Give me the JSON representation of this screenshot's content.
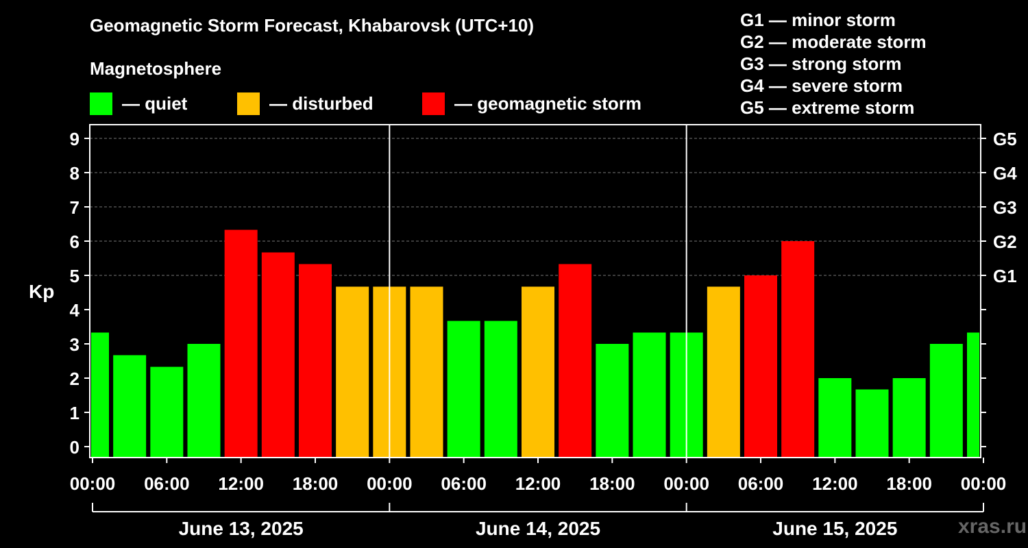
{
  "header": {
    "title": "Geomagnetic Storm Forecast, Khabarovsk (UTC+10)",
    "subtitle": "Magnetosphere"
  },
  "legend": [
    {
      "label": "— quiet",
      "color": "#00ff00"
    },
    {
      "label": "— disturbed",
      "color": "#ffc000"
    },
    {
      "label": "— geomagnetic storm",
      "color": "#ff0000"
    }
  ],
  "storm_levels": [
    "G1 — minor storm",
    "G2 — moderate storm",
    "G3 — strong storm",
    "G4 — severe storm",
    "G5 — extreme storm"
  ],
  "watermark": "xras.ru",
  "chart_data": {
    "type": "bar",
    "ylabel": "Kp",
    "ylim": [
      0,
      9
    ],
    "yticks": [
      0,
      1,
      2,
      3,
      4,
      5,
      6,
      7,
      8,
      9
    ],
    "right_axis_labels": [
      {
        "value": 5,
        "label": "G1"
      },
      {
        "value": 6,
        "label": "G2"
      },
      {
        "value": 7,
        "label": "G3"
      },
      {
        "value": 8,
        "label": "G4"
      },
      {
        "value": 9,
        "label": "G5"
      }
    ],
    "x_tick_labels": [
      "00:00",
      "06:00",
      "12:00",
      "18:00",
      "00:00",
      "06:00",
      "12:00",
      "18:00",
      "00:00",
      "06:00",
      "12:00",
      "18:00",
      "00:00"
    ],
    "days": [
      "June 13, 2025",
      "June 14, 2025",
      "June 15, 2025"
    ],
    "grid": "dashed horizontal",
    "colors": {
      "quiet": "#00ff00",
      "disturbed": "#ffc000",
      "storm": "#ff0000"
    },
    "bars": [
      {
        "time": "June 13, 2025 00:00",
        "kp": 3.33,
        "status": "quiet"
      },
      {
        "time": "June 13, 2025 03:00",
        "kp": 2.67,
        "status": "quiet"
      },
      {
        "time": "June 13, 2025 06:00",
        "kp": 2.33,
        "status": "quiet"
      },
      {
        "time": "June 13, 2025 09:00",
        "kp": 3.0,
        "status": "quiet"
      },
      {
        "time": "June 13, 2025 12:00",
        "kp": 6.33,
        "status": "storm"
      },
      {
        "time": "June 13, 2025 15:00",
        "kp": 5.67,
        "status": "storm"
      },
      {
        "time": "June 13, 2025 18:00",
        "kp": 5.33,
        "status": "storm"
      },
      {
        "time": "June 13, 2025 21:00",
        "kp": 4.67,
        "status": "disturbed"
      },
      {
        "time": "June 14, 2025 00:00",
        "kp": 4.67,
        "status": "disturbed"
      },
      {
        "time": "June 14, 2025 03:00",
        "kp": 4.67,
        "status": "disturbed"
      },
      {
        "time": "June 14, 2025 06:00",
        "kp": 3.67,
        "status": "quiet"
      },
      {
        "time": "June 14, 2025 09:00",
        "kp": 3.67,
        "status": "quiet"
      },
      {
        "time": "June 14, 2025 12:00",
        "kp": 4.67,
        "status": "disturbed"
      },
      {
        "time": "June 14, 2025 15:00",
        "kp": 5.33,
        "status": "storm"
      },
      {
        "time": "June 14, 2025 18:00",
        "kp": 3.0,
        "status": "quiet"
      },
      {
        "time": "June 14, 2025 21:00",
        "kp": 3.33,
        "status": "quiet"
      },
      {
        "time": "June 15, 2025 00:00",
        "kp": 3.33,
        "status": "quiet"
      },
      {
        "time": "June 15, 2025 03:00",
        "kp": 4.67,
        "status": "disturbed"
      },
      {
        "time": "June 15, 2025 06:00",
        "kp": 5.0,
        "status": "storm"
      },
      {
        "time": "June 15, 2025 09:00",
        "kp": 6.0,
        "status": "storm"
      },
      {
        "time": "June 15, 2025 12:00",
        "kp": 2.0,
        "status": "quiet"
      },
      {
        "time": "June 15, 2025 15:00",
        "kp": 1.67,
        "status": "quiet"
      },
      {
        "time": "June 15, 2025 18:00",
        "kp": 2.0,
        "status": "quiet"
      },
      {
        "time": "June 15, 2025 21:00",
        "kp": 3.0,
        "status": "quiet"
      },
      {
        "time": "June 16, 2025 00:00",
        "kp": 3.33,
        "status": "quiet"
      }
    ]
  }
}
